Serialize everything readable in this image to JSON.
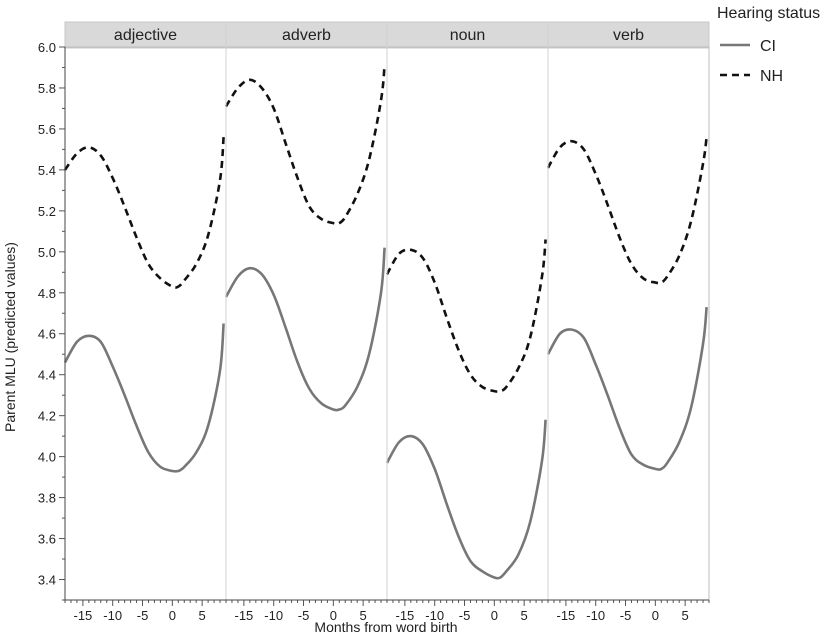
{
  "chart_data": {
    "type": "line",
    "ylabel": "Parent MLU (predicted values)",
    "xlabel": "Months from word birth",
    "ylim": [
      3.3,
      6.0
    ],
    "y_ticks": [
      3.4,
      3.6,
      3.8,
      4.0,
      4.2,
      4.4,
      4.6,
      4.8,
      5.0,
      5.2,
      5.4,
      5.6,
      5.8,
      6.0
    ],
    "y_tick_labels": [
      "3.4",
      "3.6",
      "3.8",
      "4.0",
      "4.2",
      "4.4",
      "4.6",
      "4.8",
      "5.0",
      "5.2",
      "5.4",
      "5.6",
      "5.8",
      "6.0"
    ],
    "xlim": [
      -18,
      9
    ],
    "x_ticks": [
      -15,
      -10,
      -5,
      0,
      5
    ],
    "x_tick_labels": [
      "-15",
      "-10",
      "-5",
      "0",
      "5"
    ],
    "grid": false,
    "legend": {
      "title": "Hearing status",
      "placement": "top-right",
      "entries": [
        {
          "name": "CI",
          "style": "solid",
          "color": "#777777"
        },
        {
          "name": "NH",
          "style": "dashed",
          "color": "#111111"
        }
      ]
    },
    "panels": [
      {
        "label": "adjective",
        "series": [
          {
            "name": "CI",
            "x": [
              -18,
              -16,
              -14,
              -12,
              -10,
              -8,
              -6,
              -4,
              -2,
              0,
              1,
              2,
              4,
              6,
              8,
              8.6
            ],
            "y": [
              4.46,
              4.56,
              4.59,
              4.56,
              4.44,
              4.3,
              4.15,
              4.02,
              3.95,
              3.93,
              3.93,
              3.95,
              4.02,
              4.15,
              4.42,
              4.65
            ]
          },
          {
            "name": "NH",
            "x": [
              -18,
              -16,
              -14,
              -12,
              -10,
              -8,
              -6,
              -4,
              -2,
              0,
              1,
              2,
              4,
              6,
              8,
              8.6
            ],
            "y": [
              5.4,
              5.48,
              5.51,
              5.47,
              5.36,
              5.22,
              5.07,
              4.94,
              4.87,
              4.83,
              4.83,
              4.86,
              4.94,
              5.08,
              5.35,
              5.56
            ]
          }
        ]
      },
      {
        "label": "adverb",
        "series": [
          {
            "name": "CI",
            "x": [
              -18,
              -16,
              -14,
              -12,
              -10,
              -8,
              -6,
              -4,
              -2,
              0,
              1,
              2,
              4,
              6,
              8,
              8.6
            ],
            "y": [
              4.78,
              4.88,
              4.92,
              4.89,
              4.79,
              4.63,
              4.46,
              4.33,
              4.26,
              4.23,
              4.23,
              4.25,
              4.34,
              4.5,
              4.8,
              5.02
            ]
          },
          {
            "name": "NH",
            "x": [
              -18,
              -16,
              -14,
              -12,
              -10,
              -8,
              -6,
              -4,
              -2,
              0,
              1,
              2,
              4,
              6,
              8,
              8.6
            ],
            "y": [
              5.71,
              5.8,
              5.84,
              5.8,
              5.7,
              5.53,
              5.36,
              5.22,
              5.16,
              5.14,
              5.14,
              5.17,
              5.28,
              5.45,
              5.74,
              5.91
            ]
          }
        ]
      },
      {
        "label": "noun",
        "series": [
          {
            "name": "CI",
            "x": [
              -18,
              -16,
              -14,
              -12,
              -10,
              -8,
              -6,
              -4,
              -2,
              0,
              1,
              2,
              4,
              6,
              8,
              8.6
            ],
            "y": [
              3.97,
              4.07,
              4.1,
              4.06,
              3.94,
              3.77,
              3.61,
              3.49,
              3.44,
              3.41,
              3.41,
              3.44,
              3.52,
              3.68,
              3.98,
              4.18
            ]
          },
          {
            "name": "NH",
            "x": [
              -18,
              -16,
              -14,
              -12,
              -10,
              -8,
              -6,
              -4,
              -2,
              0,
              1,
              2,
              4,
              6,
              8,
              8.6
            ],
            "y": [
              4.89,
              4.99,
              5.01,
              4.97,
              4.85,
              4.68,
              4.52,
              4.4,
              4.34,
              4.32,
              4.32,
              4.34,
              4.43,
              4.58,
              4.88,
              5.06
            ]
          }
        ]
      },
      {
        "label": "verb",
        "series": [
          {
            "name": "CI",
            "x": [
              -18,
              -16,
              -14,
              -12,
              -10,
              -8,
              -6,
              -4,
              -2,
              0,
              1,
              2,
              4,
              6,
              8,
              8.6
            ],
            "y": [
              4.5,
              4.6,
              4.62,
              4.58,
              4.45,
              4.3,
              4.14,
              4.01,
              3.96,
              3.94,
              3.94,
              3.97,
              4.07,
              4.24,
              4.55,
              4.73
            ]
          },
          {
            "name": "NH",
            "x": [
              -18,
              -16,
              -14,
              -12,
              -10,
              -8,
              -6,
              -4,
              -2,
              0,
              1,
              2,
              4,
              6,
              8,
              8.6
            ],
            "y": [
              5.41,
              5.51,
              5.54,
              5.5,
              5.38,
              5.23,
              5.07,
              4.94,
              4.87,
              4.85,
              4.85,
              4.88,
              4.98,
              5.15,
              5.43,
              5.56
            ]
          }
        ]
      }
    ]
  }
}
